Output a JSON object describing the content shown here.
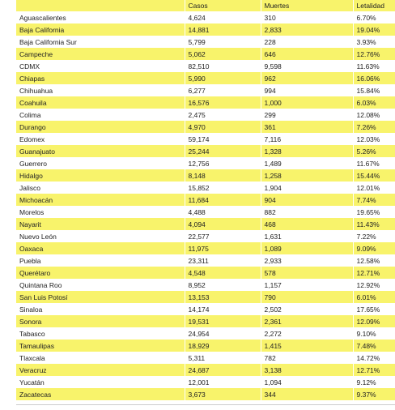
{
  "table": {
    "header": [
      "Casos",
      "Muertes",
      "Letalidad"
    ],
    "rows": [
      [
        "Aguascalientes",
        "4,624",
        "310",
        "6.70%"
      ],
      [
        "Baja California",
        "14,881",
        "2,833",
        "19.04%"
      ],
      [
        "Baja California Sur",
        "5,799",
        "228",
        "3.93%"
      ],
      [
        "Campeche",
        "5,062",
        "646",
        "12.76%"
      ],
      [
        "CDMX",
        "82,510",
        "9,598",
        "11.63%"
      ],
      [
        "Chiapas",
        "5,990",
        "962",
        "16.06%"
      ],
      [
        "Chihuahua",
        "6,277",
        "994",
        "15.84%"
      ],
      [
        "Coahuila",
        "16,576",
        "1,000",
        "6.03%"
      ],
      [
        "Colima",
        "2,475",
        "299",
        "12.08%"
      ],
      [
        "Durango",
        "4,970",
        "361",
        "7.26%"
      ],
      [
        "Edomex",
        "59,174",
        "7,116",
        "12.03%"
      ],
      [
        "Guanajuato",
        "25,244",
        "1,328",
        "5.26%"
      ],
      [
        "Guerrero",
        "12,756",
        "1,489",
        "11.67%"
      ],
      [
        "Hidalgo",
        "8,148",
        "1,258",
        "15.44%"
      ],
      [
        "Jalisco",
        "15,852",
        "1,904",
        "12.01%"
      ],
      [
        "Michoacán",
        "11,684",
        "904",
        "7.74%"
      ],
      [
        "Morelos",
        "4,488",
        "882",
        "19.65%"
      ],
      [
        "Nayarit",
        "4,094",
        "468",
        "11.43%"
      ],
      [
        "Nuevo León",
        "22,577",
        "1,631",
        "7.22%"
      ],
      [
        "Oaxaca",
        "11,975",
        "1,089",
        "9.09%"
      ],
      [
        "Puebla",
        "23,311",
        "2,933",
        "12.58%"
      ],
      [
        "Querétaro",
        "4,548",
        "578",
        "12.71%"
      ],
      [
        "Quintana Roo",
        "8,952",
        "1,157",
        "12.92%"
      ],
      [
        "San Luis Potosí",
        "13,153",
        "790",
        "6.01%"
      ],
      [
        "Sinaloa",
        "14,174",
        "2,502",
        "17.65%"
      ],
      [
        "Sonora",
        "19,531",
        "2,361",
        "12.09%"
      ],
      [
        "Tabasco",
        "24,954",
        "2,272",
        "9.10%"
      ],
      [
        "Tamaulipas",
        "18,929",
        "1,415",
        "7.48%"
      ],
      [
        "Tlaxcala",
        "5,311",
        "782",
        "14.72%"
      ],
      [
        "Veracruz",
        "24,687",
        "3,138",
        "12.71%"
      ],
      [
        "Yucatán",
        "12,001",
        "1,094",
        "9.12%"
      ],
      [
        "Zacatecas",
        "3,673",
        "344",
        "9.37%"
      ]
    ]
  }
}
